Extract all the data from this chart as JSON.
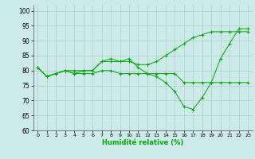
{
  "xlabel": "Humidité relative (%)",
  "background_color": "#cceae7",
  "grid_color": "#aacccc",
  "line_color": "#00aa00",
  "ylim": [
    60,
    102
  ],
  "xlim": [
    -0.5,
    23.5
  ],
  "yticks": [
    60,
    65,
    70,
    75,
    80,
    85,
    90,
    95,
    100
  ],
  "xticks": [
    0,
    1,
    2,
    3,
    4,
    5,
    6,
    7,
    8,
    9,
    10,
    11,
    12,
    13,
    14,
    15,
    16,
    17,
    18,
    19,
    20,
    21,
    22,
    23
  ],
  "series": [
    [
      81,
      78,
      79,
      80,
      80,
      80,
      80,
      83,
      83,
      83,
      84,
      81,
      79,
      78,
      76,
      73,
      68,
      67,
      71,
      76,
      84,
      89,
      94,
      94
    ],
    [
      81,
      78,
      79,
      80,
      79,
      80,
      80,
      83,
      84,
      83,
      83,
      82,
      82,
      83,
      85,
      87,
      89,
      91,
      92,
      93,
      93,
      93,
      93,
      93
    ],
    [
      81,
      78,
      79,
      80,
      79,
      79,
      79,
      80,
      80,
      79,
      79,
      79,
      79,
      79,
      79,
      79,
      76,
      76,
      76,
      76,
      76,
      76,
      76,
      76
    ]
  ]
}
